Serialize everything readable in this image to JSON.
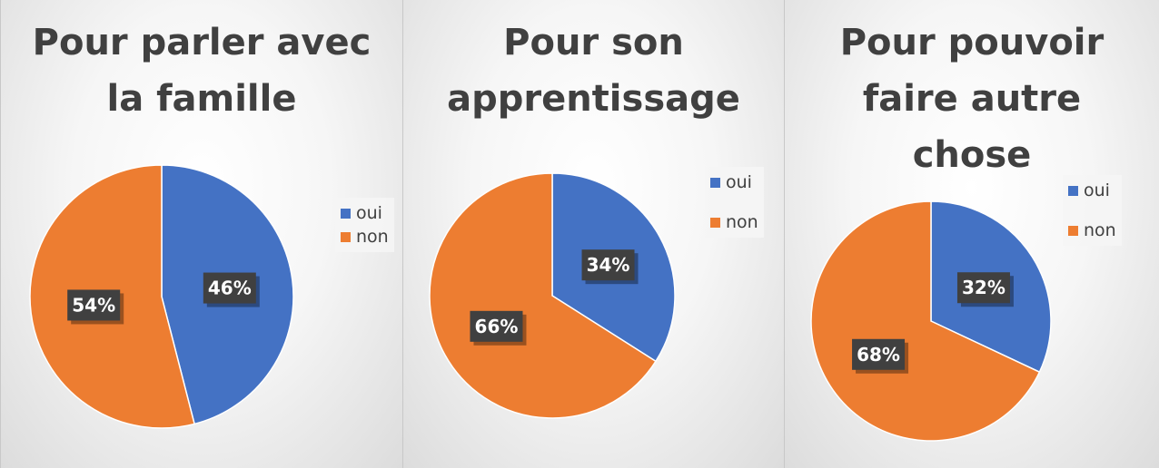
{
  "colors": {
    "oui": "#4472c4",
    "non": "#ed7d31"
  },
  "chart_data": [
    {
      "type": "pie",
      "title_lines": [
        "Pour parler avec",
        "la famille"
      ],
      "categories": [
        "oui",
        "non"
      ],
      "values": [
        46,
        54
      ],
      "data_labels": [
        "46%",
        "54%"
      ],
      "legend": [
        "oui",
        "non"
      ],
      "legend_placement": "right"
    },
    {
      "type": "pie",
      "title_lines": [
        "Pour son",
        "apprentissage"
      ],
      "categories": [
        "oui",
        "non"
      ],
      "values": [
        34,
        66
      ],
      "data_labels": [
        "34%",
        "66%"
      ],
      "legend": [
        "oui",
        "non"
      ],
      "legend_placement": "right"
    },
    {
      "type": "pie",
      "title_lines": [
        "Pour pouvoir",
        "faire autre",
        "chose"
      ],
      "categories": [
        "oui",
        "non"
      ],
      "values": [
        32,
        68
      ],
      "data_labels": [
        "32%",
        "68%"
      ],
      "legend": [
        "oui",
        "non"
      ],
      "legend_placement": "right"
    }
  ]
}
